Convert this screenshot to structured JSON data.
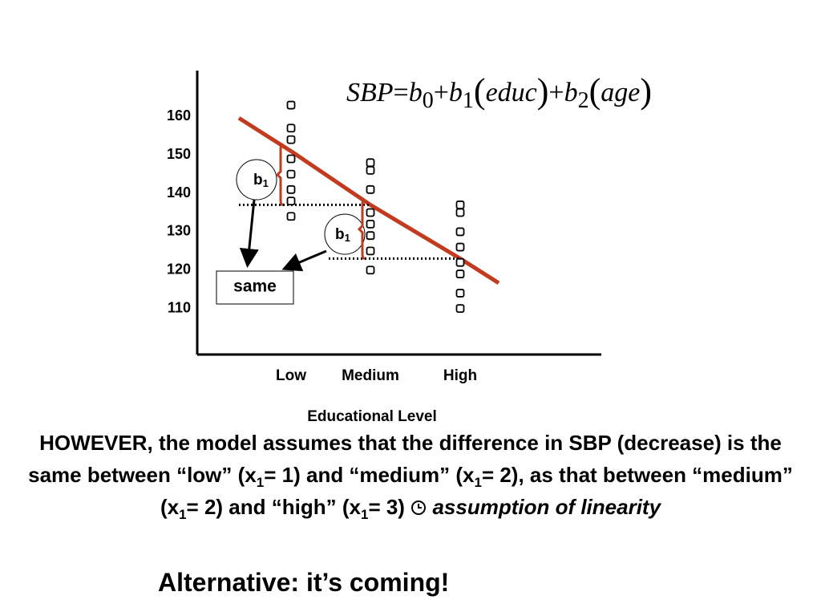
{
  "chart_data": {
    "type": "scatter",
    "categories": [
      "Low",
      "Medium",
      "High"
    ],
    "values": [
      [
        163,
        157,
        154,
        149,
        145,
        141,
        138,
        134
      ],
      [
        148,
        146,
        141,
        135,
        132,
        129,
        125,
        120
      ],
      [
        137,
        135,
        130,
        126,
        122,
        119,
        114,
        110
      ]
    ],
    "color": "#000000",
    "fit": {
      "color": "#c23b1e",
      "values": [
        151,
        137,
        123
      ]
    },
    "ylim": [
      98,
      172
    ],
    "yticks": [
      110,
      120,
      130,
      140,
      150,
      160
    ],
    "xlabel": "Educational Level",
    "equation": [
      "SBP",
      "=",
      "b",
      "0",
      "+",
      "b",
      "1",
      "(",
      "educ",
      ")",
      "+",
      "b",
      "2",
      "(",
      "age",
      ")"
    ],
    "annotations": {
      "b": "b",
      "sub": "1",
      "same": "same"
    }
  },
  "body": [
    "HOWEVER, the model assumes that the difference in SBP (decrease) is the same between “low” (x",
    "1",
    "= 1) and “medium” (x",
    "1",
    "= 2), as that between “medium” (x",
    "1",
    "= 2) and “high” (x",
    "1",
    "= 3)",
    "assumption of linearity"
  ],
  "footer": "Alternative: it’s coming!"
}
